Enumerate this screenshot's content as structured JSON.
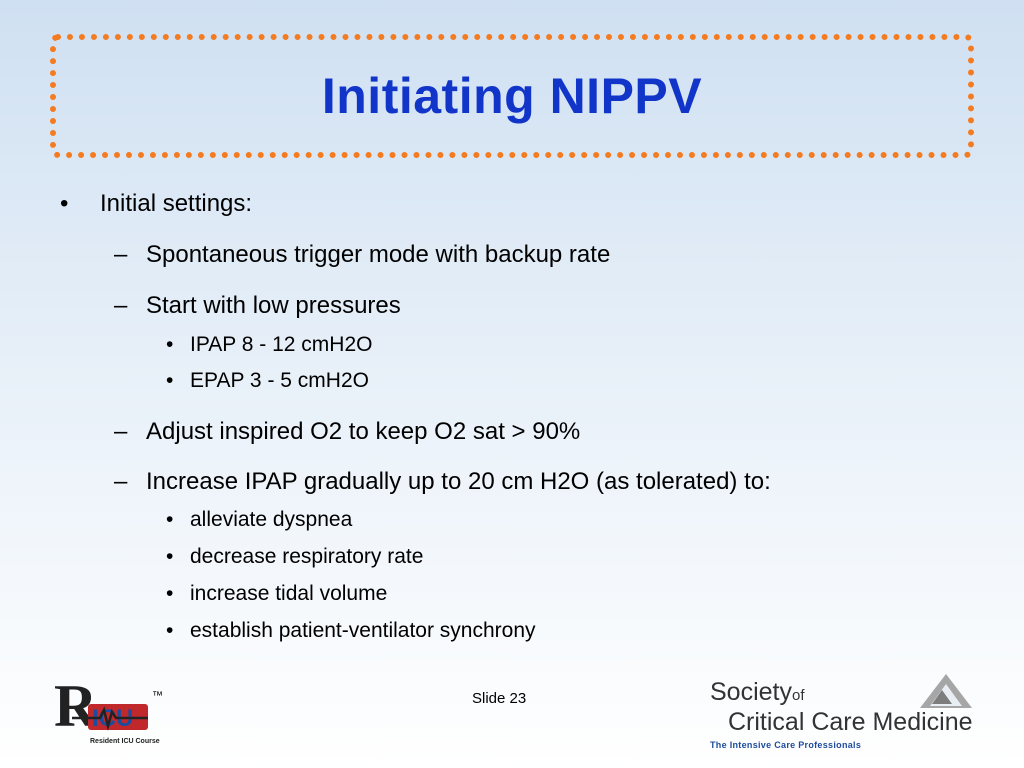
{
  "slide": {
    "title": "Initiating NIPPV",
    "bullets": [
      {
        "marker": "•",
        "text": "Initial settings:"
      },
      {
        "marker": "–",
        "text": "Spontaneous trigger mode with backup rate"
      },
      {
        "marker": "–",
        "text": "Start with low pressures"
      },
      {
        "marker": "•",
        "text": "IPAP 8 - 12 cmH2O"
      },
      {
        "marker": "•",
        "text": "EPAP 3 - 5 cmH2O"
      },
      {
        "marker": "–",
        "text": "Adjust inspired O2 to keep O2 sat > 90%"
      },
      {
        "marker": "–",
        "text": "Increase IPAP gradually up to 20 cm H2O (as tolerated) to:"
      },
      {
        "marker": "•",
        "text": "alleviate dyspnea"
      },
      {
        "marker": "•",
        "text": "decrease respiratory rate"
      },
      {
        "marker": "•",
        "text": "increase tidal volume"
      },
      {
        "marker": "•",
        "text": "establish patient-ventilator synchrony"
      }
    ],
    "slide_number": "Slide 23"
  },
  "footer": {
    "ricu_logo": {
      "letters": "R",
      "icu": "ICU",
      "subtitle": "Resident ICU Course",
      "tm": "™"
    },
    "sccm_logo": {
      "line1": "Society",
      "of": "of",
      "line2": "Critical Care Medicine",
      "tagline": "The Intensive Care Professionals"
    }
  },
  "colors": {
    "title": "#1235c9",
    "frame": "#f47b20",
    "ricu_red": "#c0282c",
    "ricu_blue": "#1d4c9c"
  }
}
